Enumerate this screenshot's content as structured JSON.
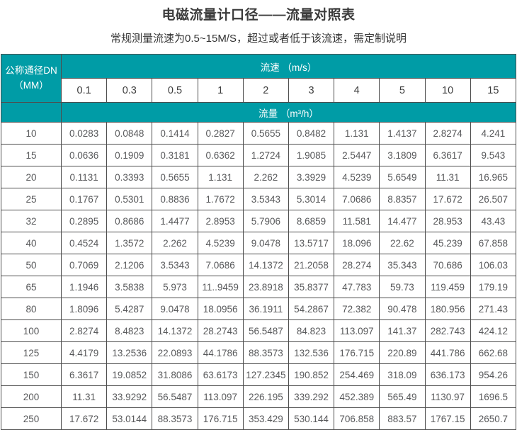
{
  "title": "电磁流量计口径——流量对照表",
  "subtitle": "常规测量流速为0.5~15M/S，超过或者低于该流速，需定制说明",
  "colors": {
    "header_teal": "#009CA6",
    "border": "#4d4d4d",
    "data_text": "#58595b",
    "title_text": "#3b3b3b"
  },
  "table": {
    "corner_header_line1": "公称通径DN",
    "corner_header_line2": "（MM）",
    "velocity_header": "流速 （m/s）",
    "flow_header": "流量 （m³/h）",
    "velocities": [
      "0.1",
      "0.3",
      "0.5",
      "1",
      "2",
      "3",
      "4",
      "5",
      "10",
      "15"
    ],
    "rows": [
      {
        "dn": "10",
        "values": [
          "0.0283",
          "0.0848",
          "0.1414",
          "0.2827",
          "0.5655",
          "0.8482",
          "1.131",
          "1.4137",
          "2.8274",
          "4.241"
        ]
      },
      {
        "dn": "15",
        "values": [
          "0.0636",
          "0.1909",
          "0.3181",
          "0.6362",
          "1.2724",
          "1.9085",
          "2.5447",
          "3.1809",
          "6.3617",
          "9.543"
        ]
      },
      {
        "dn": "20",
        "values": [
          "0.1131",
          "0.3393",
          "0.5655",
          "1.131",
          "2.262",
          "3.3929",
          "4.5239",
          "5.6549",
          "11.31",
          "16.965"
        ]
      },
      {
        "dn": "25",
        "values": [
          "0.1767",
          "0.5301",
          "0.8836",
          "1.7672",
          "3.5343",
          "5.3014",
          "7.0686",
          "8.8357",
          "17.672",
          "26.507"
        ]
      },
      {
        "dn": "32",
        "values": [
          "0.2895",
          "0.8686",
          "1.4477",
          "2.8953",
          "5.7906",
          "8.6859",
          "11.581",
          "14.477",
          "28.953",
          "43.43"
        ]
      },
      {
        "dn": "40",
        "values": [
          "0.4524",
          "1.3572",
          "2.262",
          "4.5239",
          "9.0478",
          "13.5717",
          "18.096",
          "22.62",
          "45.239",
          "67.858"
        ]
      },
      {
        "dn": "50",
        "values": [
          "0.7069",
          "2.1206",
          "3.5343",
          "7.0686",
          "14.1372",
          "21.2058",
          "28.274",
          "35.343",
          "70.686",
          "106.03"
        ]
      },
      {
        "dn": "65",
        "values": [
          "1.1946",
          "3.5838",
          "5.973",
          "11..9459",
          "23.8918",
          "35.8377",
          "47.783",
          "59.73",
          "119.459",
          "179.19"
        ]
      },
      {
        "dn": "80",
        "values": [
          "1.8096",
          "5.4287",
          "9.0478",
          "18.0956",
          "36.1911",
          "54.2867",
          "72.382",
          "90.478",
          "180.956",
          "271.43"
        ]
      },
      {
        "dn": "100",
        "values": [
          "2.8274",
          "8.4823",
          "14.1372",
          "28.2743",
          "56.5487",
          "84.823",
          "113.097",
          "141.37",
          "282.743",
          "424.12"
        ]
      },
      {
        "dn": "125",
        "values": [
          "4.4179",
          "13.2536",
          "22.0893",
          "44.1786",
          "88.3573",
          "132.536",
          "176.715",
          "220.89",
          "441.786",
          "662.68"
        ]
      },
      {
        "dn": "150",
        "values": [
          "6.3617",
          "19.0852",
          "31.8086",
          "63.6173",
          "127.2345",
          "190.852",
          "254.469",
          "318.09",
          "636.173",
          "954.26"
        ]
      },
      {
        "dn": "200",
        "values": [
          "11.31",
          "33.9292",
          "56.5487",
          "113.097",
          "226.195",
          "339.292",
          "452.389",
          "565.49",
          "1130.97",
          "1696.5"
        ]
      },
      {
        "dn": "250",
        "values": [
          "17.672",
          "53.0144",
          "88.3573",
          "176.715",
          "353.429",
          "530.144",
          "706.858",
          "883.57",
          "1767.15",
          "2650.7"
        ]
      }
    ]
  }
}
